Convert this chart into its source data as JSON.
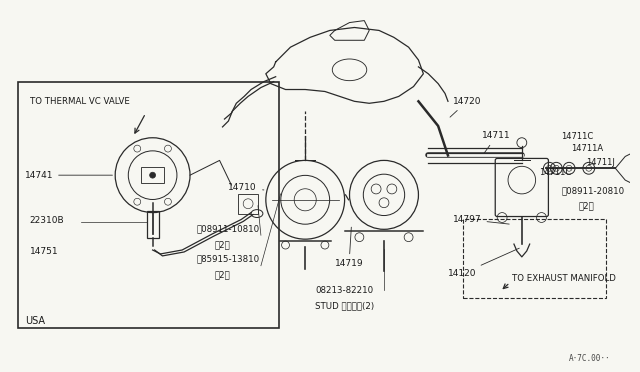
{
  "bg_color": "#f7f7f2",
  "line_color": "#2a2a2a",
  "text_color": "#1a1a1a",
  "fig_width": 6.4,
  "fig_height": 3.72,
  "dpi": 100,
  "watermark": "A·7C.00··",
  "usa_label": "USA",
  "thermal_label": "TO THERMAL VC VALVE",
  "exhaust_label": "TO EXHAUST MANIFOLD"
}
